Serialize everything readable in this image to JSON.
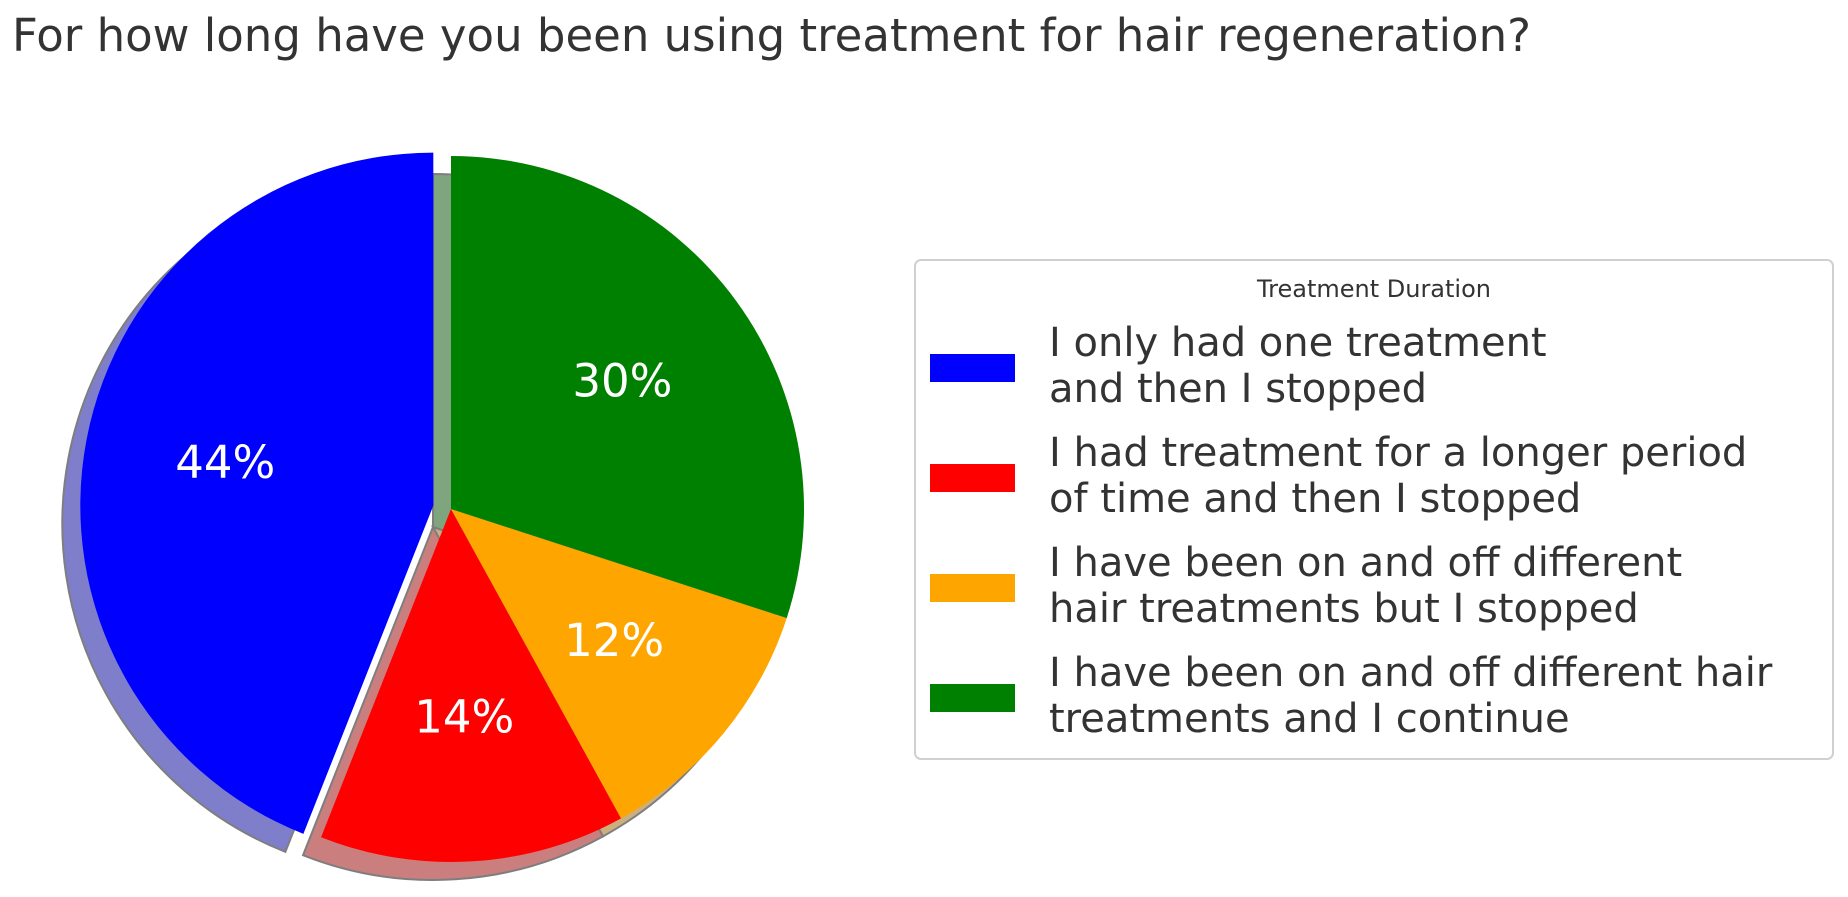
{
  "chart_data": {
    "type": "pie",
    "title": "For how long have you been using treatment for hair regeneration?",
    "categories": [
      "I only had one treatment\nand then I stopped",
      "I had treatment for a longer period\nof time and then I stopped",
      "I have been on and off different\nhair treatments but I stopped",
      "I have been on and off different hair\ntreatments and I continue"
    ],
    "values": [
      44,
      14,
      12,
      30
    ],
    "value_labels": [
      "44%",
      "14%",
      "12%",
      "30%"
    ],
    "colors": [
      "#0000ff",
      "#ff0000",
      "#ffa500",
      "#008000"
    ],
    "legend_title": "Treatment Duration",
    "legend": "right"
  }
}
